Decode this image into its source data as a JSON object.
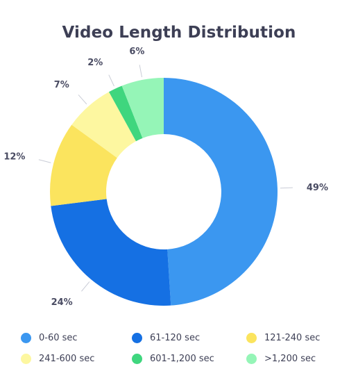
{
  "chart_data": {
    "type": "pie",
    "title": "Video Length Distribution",
    "categories": [
      "0-60 sec",
      "61-120 sec",
      "121-240 sec",
      "241-600 sec",
      "601-1,200 sec",
      ">1,200 sec"
    ],
    "values": [
      49,
      24,
      12,
      7,
      2,
      6
    ],
    "labels": [
      "49%",
      "24%",
      "12%",
      "7%",
      "2%",
      "6%"
    ],
    "colors": [
      "#3b97f0",
      "#1570e3",
      "#fbe45e",
      "#fdf7a0",
      "#3fd67e",
      "#95f5b7"
    ],
    "donut": true,
    "legend_placement": "bottom"
  }
}
